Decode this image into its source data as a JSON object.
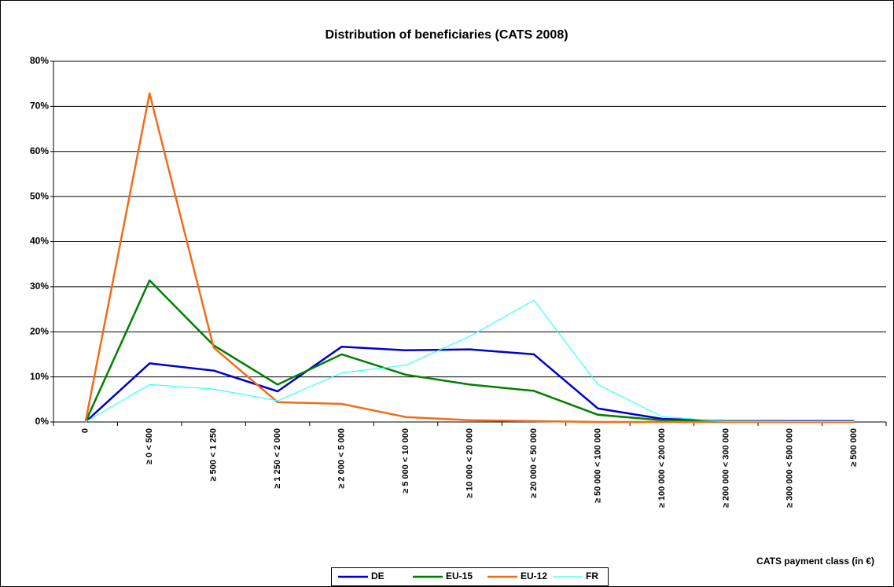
{
  "chart_data": {
    "type": "line",
    "title": "Distribution of beneficiaries (CATS 2008)",
    "x_label": "CATS payment class (in €)",
    "categories": [
      "0",
      "≥ 0 < 500",
      "≥ 500 < 1 250",
      "≥ 1 250 < 2 000",
      "≥ 2 000 < 5 000",
      "≥ 5 000 < 10 000",
      "≥ 10 000 < 20 000",
      "≥ 20 000 < 50 000",
      "≥ 50 000 < 100 000",
      "≥ 100 000 < 200 000",
      "≥ 200 000 < 300 000",
      "≥ 300 000 < 500 000",
      "≥ 500 000"
    ],
    "series": [
      {
        "name": "DE",
        "color": "#0000cc",
        "width": 2.5,
        "values": [
          0,
          13,
          11.4,
          6.8,
          16.7,
          15.9,
          16.1,
          15,
          3,
          0.7,
          0.2,
          0.2,
          0.2
        ]
      },
      {
        "name": "EU-15",
        "color": "#008000",
        "width": 2.5,
        "values": [
          0,
          31.4,
          17,
          8.3,
          15,
          10.5,
          8.3,
          6.9,
          1.6,
          0.4,
          0.1,
          0.05,
          0.05
        ]
      },
      {
        "name": "EU-12",
        "color": "#f26c18",
        "width": 2.5,
        "values": [
          0,
          72.9,
          16.5,
          4.4,
          4,
          1.1,
          0.4,
          0.2,
          0,
          0,
          0,
          0,
          0
        ]
      },
      {
        "name": "FR",
        "color": "#33ffff",
        "width": 1.2,
        "values": [
          0,
          8.3,
          7.3,
          4.7,
          10.9,
          12.6,
          19,
          27,
          8.3,
          1.2,
          0.1,
          0.1,
          0.1
        ]
      }
    ],
    "ylim": [
      0,
      80
    ],
    "yticks": [
      {
        "value": 0,
        "label": "0%"
      },
      {
        "value": 10,
        "label": "10%"
      },
      {
        "value": 20,
        "label": "20%"
      },
      {
        "value": 30,
        "label": "30%"
      },
      {
        "value": 40,
        "label": "40%"
      },
      {
        "value": 50,
        "label": "50%"
      },
      {
        "value": 60,
        "label": "60%"
      },
      {
        "value": 70,
        "label": "70%"
      },
      {
        "value": 80,
        "label": "80%"
      }
    ],
    "grid": true,
    "legend": "bottom"
  }
}
